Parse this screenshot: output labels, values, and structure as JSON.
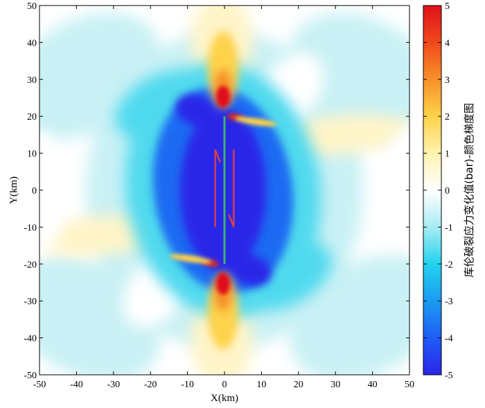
{
  "chart_data": {
    "type": "heatmap",
    "title": "",
    "xlabel": "X(km)",
    "ylabel": "Y(km)",
    "xlim": [
      -50,
      50
    ],
    "ylim": [
      -50,
      50
    ],
    "x_ticks": [
      -50,
      -40,
      -30,
      -20,
      -10,
      0,
      10,
      20,
      30,
      40,
      50
    ],
    "y_ticks": [
      -50,
      -40,
      -30,
      -20,
      -10,
      0,
      10,
      20,
      30,
      40,
      50
    ],
    "colorbar": {
      "label": "库伦破裂应力变化值(bar)-颜色梯度图",
      "range": [
        -5,
        5
      ],
      "ticks": [
        5,
        4,
        3,
        2,
        1,
        0,
        -1,
        -2,
        -3,
        -4,
        -5
      ],
      "colors": [
        "#2a25e8",
        "#1f5df5",
        "#1a9cf0",
        "#22d2ee",
        "#a8ecf4",
        "#ffffff",
        "#fff2b0",
        "#fed24a",
        "#f7902a",
        "#ef4a1c",
        "#e0101a"
      ]
    },
    "fault": {
      "x": [
        0,
        0
      ],
      "y": [
        -20,
        20
      ],
      "color": "#3db36d"
    },
    "slip_arrows": [
      {
        "x": -2.5,
        "y_from": -10,
        "y_to": 11,
        "direction": "up",
        "color": "#e8413a"
      },
      {
        "x": 2.5,
        "y_from": 11,
        "y_to": -10,
        "direction": "down",
        "color": "#e8413a"
      }
    ],
    "field_features": [
      {
        "kind": "positive-lobe",
        "x": 0,
        "y": 24,
        "peak": 5
      },
      {
        "kind": "positive-lobe",
        "x": 0,
        "y": -24,
        "peak": 5
      },
      {
        "kind": "positive-lobe",
        "x": 3,
        "y": 19,
        "peak": 5
      },
      {
        "kind": "positive-lobe",
        "x": -3,
        "y": -19,
        "peak": 5
      },
      {
        "kind": "negative-core",
        "x": 0,
        "y": 0,
        "peak": -5
      },
      {
        "kind": "positive-band",
        "x": 0,
        "y": 40,
        "peak": 1
      },
      {
        "kind": "positive-band",
        "x": 0,
        "y": -40,
        "peak": 1
      },
      {
        "kind": "positive-band",
        "x": 35,
        "y": 12,
        "peak": 0.4
      },
      {
        "kind": "positive-band",
        "x": -35,
        "y": -12,
        "peak": 0.4
      }
    ]
  }
}
